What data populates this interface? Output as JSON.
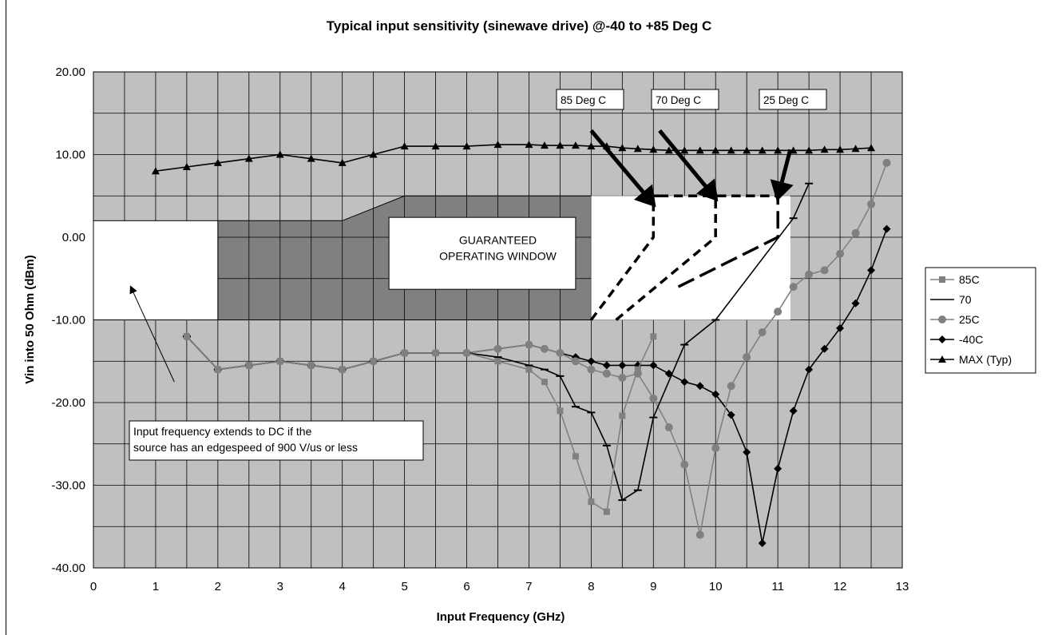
{
  "chart_data": {
    "type": "line",
    "title": "Typical input sensitivity (sinewave drive) @-40 to +85 Deg C",
    "xlabel": "Input Frequency (GHz)",
    "ylabel": "Vin into 50 Ohm (dBm)",
    "xlim": [
      0,
      13
    ],
    "ylim": [
      -40,
      20
    ],
    "xticks": [
      "0",
      "1",
      "2",
      "3",
      "4",
      "5",
      "6",
      "7",
      "8",
      "9",
      "10",
      "11",
      "12",
      "13"
    ],
    "yticks": [
      "20.00",
      "10.00",
      "0.00",
      "-10.00",
      "-20.00",
      "-30.00",
      "-40.00"
    ],
    "grid": true,
    "legend_position": "right",
    "colors": {
      "plot_bg": "#c0c0c0",
      "guaranteed_window": "#808080",
      "gray_series": "#808080",
      "black_series": "#000000"
    },
    "series": [
      {
        "name": "85C",
        "marker": "square",
        "color": "#808080",
        "x": [
          1.5,
          2,
          2.5,
          3,
          3.5,
          4,
          4.5,
          5,
          5.5,
          6,
          6.5,
          7,
          7.25,
          7.5,
          7.75,
          8,
          8.25,
          8.5,
          8.75,
          9
        ],
        "y": [
          -12,
          -16,
          -15.5,
          -15,
          -15.5,
          -16,
          -15,
          -14,
          -14,
          -14,
          -15,
          -16,
          -17.5,
          -21,
          -26.5,
          -32,
          -33.2,
          -21.6,
          -16,
          -12
        ]
      },
      {
        "name": "70",
        "marker": "dash",
        "color": "#000000",
        "x": [
          1.5,
          2,
          2.5,
          3,
          3.5,
          4,
          4.5,
          5,
          5.5,
          6,
          6.5,
          7,
          7.25,
          7.5,
          7.75,
          8,
          8.25,
          8.5,
          8.75,
          9,
          9.5,
          10,
          11.25,
          11.5
        ],
        "y": [
          -12,
          -16,
          -15.5,
          -15,
          -15.5,
          -16,
          -15,
          -14,
          -14,
          -14,
          -14.5,
          -15.5,
          -16,
          -16.8,
          -20.5,
          -21.2,
          -25.2,
          -31.8,
          -30.6,
          -21.8,
          -13,
          -10,
          2.3,
          6.5
        ]
      },
      {
        "name": "25C",
        "marker": "circle",
        "color": "#808080",
        "x": [
          1.5,
          2,
          2.5,
          3,
          3.5,
          4,
          4.5,
          5,
          5.5,
          6,
          6.5,
          7,
          7.25,
          7.5,
          7.75,
          8,
          8.25,
          8.5,
          8.75,
          9,
          9.25,
          9.5,
          9.75,
          10,
          10.25,
          10.5,
          10.75,
          11,
          11.25,
          11.5,
          11.75,
          12,
          12.25,
          12.5,
          12.75
        ],
        "y": [
          -12,
          -16,
          -15.5,
          -15,
          -15.5,
          -16,
          -15,
          -14,
          -14,
          -14,
          -13.5,
          -13,
          -13.5,
          -14,
          -15,
          -16,
          -16.5,
          -17,
          -16.5,
          -19.5,
          -23,
          -27.5,
          -36,
          -25.5,
          -18,
          -14.5,
          -11.5,
          -9,
          -6,
          -4.5,
          -4,
          -2,
          0.5,
          4,
          9
        ]
      },
      {
        "name": "-40C",
        "marker": "diamond",
        "color": "#000000",
        "x": [
          1.5,
          2,
          2.5,
          3,
          3.5,
          4,
          4.5,
          5,
          5.5,
          6,
          6.5,
          7,
          7.25,
          7.5,
          7.75,
          8,
          8.25,
          8.5,
          8.75,
          9,
          9.25,
          9.5,
          9.75,
          10,
          10.25,
          10.5,
          10.75,
          11,
          11.25,
          11.5,
          11.75,
          12,
          12.25,
          12.5,
          12.75
        ],
        "y": [
          -12,
          -16,
          -15.5,
          -15,
          -15.5,
          -16,
          -15,
          -14,
          -14,
          -14,
          -13.5,
          -13,
          -13.5,
          -14,
          -14.5,
          -15,
          -15.5,
          -15.5,
          -15.5,
          -15.5,
          -16.5,
          -17.5,
          -18,
          -19,
          -21.5,
          -26,
          -37,
          -28,
          -21,
          -16,
          -13.5,
          -11,
          -8,
          -4,
          1
        ]
      },
      {
        "name": "MAX (Typ)",
        "marker": "triangle",
        "color": "#000000",
        "x": [
          1,
          1.5,
          2,
          2.5,
          3,
          3.5,
          4,
          4.5,
          5,
          5.5,
          6,
          6.5,
          7,
          7.25,
          7.5,
          7.75,
          8,
          8.25,
          8.5,
          8.75,
          9,
          9.25,
          9.5,
          9.75,
          10,
          10.25,
          10.5,
          10.75,
          11,
          11.25,
          11.5,
          11.75,
          12,
          12.25,
          12.5
        ],
        "y": [
          8,
          8.5,
          9,
          9.5,
          10,
          9.5,
          9,
          10,
          11,
          11,
          11,
          11.2,
          11.2,
          11.1,
          11.1,
          11.1,
          11,
          11,
          10.8,
          10.7,
          10.6,
          10.5,
          10.5,
          10.5,
          10.5,
          10.5,
          10.5,
          10.5,
          10.5,
          10.5,
          10.5,
          10.6,
          10.6,
          10.7,
          10.8
        ]
      }
    ],
    "regions": {
      "guaranteed_window": {
        "x": [
          2,
          4,
          5,
          8,
          8,
          2
        ],
        "y": [
          2,
          2,
          5,
          5,
          -10,
          -10
        ]
      },
      "white_left": {
        "x": [
          0,
          2
        ],
        "y": [
          -10,
          2
        ]
      },
      "white_right": {
        "x": [
          8,
          11.2
        ],
        "y": [
          -10,
          5
        ]
      },
      "dashed_85": {
        "x": [
          8,
          9,
          9,
          9.1
        ],
        "y": [
          -10,
          0,
          5,
          5
        ]
      },
      "dashed_70": {
        "x": [
          8.4,
          10,
          10,
          11
        ],
        "y": [
          -10,
          0,
          5,
          5
        ]
      },
      "dashed_25": {
        "x": [
          9.4,
          11,
          11
        ],
        "y": [
          -6,
          0,
          5
        ]
      }
    },
    "arrow_targets": {
      "85": {
        "from": [
          8.0,
          12.9
        ],
        "to": [
          9.0,
          4.0
        ]
      },
      "70": {
        "from": [
          9.1,
          12.9
        ],
        "to": [
          10.0,
          4.7
        ]
      },
      "25": {
        "from": [
          11.2,
          10.6
        ],
        "to": [
          11.0,
          4.8
        ]
      },
      "note": {
        "from": [
          1.3,
          -17.5
        ],
        "to": [
          0.6,
          -6.0
        ]
      }
    },
    "annotations": {
      "window_label": [
        "GUARANTEED",
        "OPERATING WINDOW"
      ],
      "callout_85": "85 Deg C",
      "callout_70": "70 Deg C",
      "callout_25": "25 Deg C",
      "note": [
        "Input frequency extends to DC if the",
        "source has an edgespeed of 900 V/us or less"
      ]
    }
  }
}
